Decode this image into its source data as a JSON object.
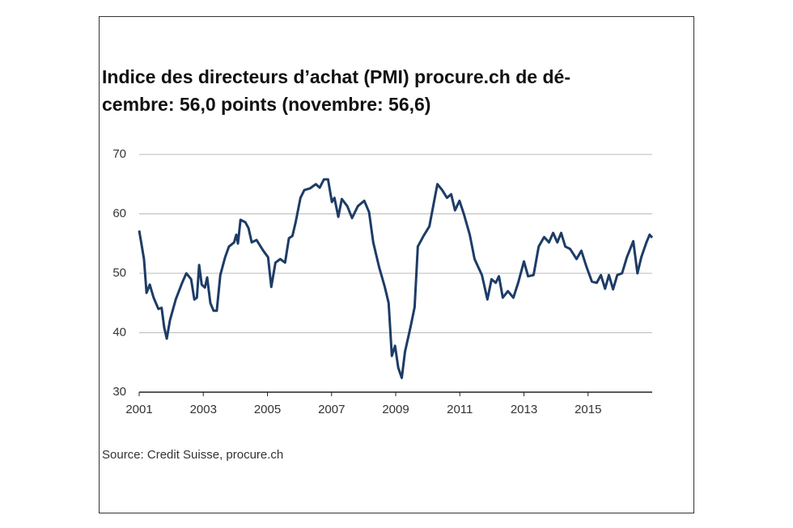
{
  "chart_data": {
    "type": "line",
    "title_lines": [
      "Indice des directeurs d’achat (PMI) procure.ch de dé-",
      "cembre: 56,0 points (novembre: 56,6)"
    ],
    "source": "Source: Credit Suisse, procure.ch",
    "xlim": [
      2001,
      2017
    ],
    "xticks": [
      2001,
      2003,
      2005,
      2007,
      2009,
      2011,
      2013,
      2015
    ],
    "ylim": [
      30,
      70
    ],
    "yticks": [
      30,
      40,
      50,
      60,
      70
    ],
    "grid": true,
    "series": [
      {
        "name": "PMI",
        "color": "#1d3c66",
        "x": [
          2001.0,
          2001.15,
          2001.23,
          2001.33,
          2001.45,
          2001.6,
          2001.7,
          2001.78,
          2001.86,
          2001.96,
          2002.14,
          2002.34,
          2002.47,
          2002.62,
          2002.72,
          2002.8,
          2002.87,
          2002.95,
          2003.05,
          2003.12,
          2003.22,
          2003.32,
          2003.42,
          2003.53,
          2003.68,
          2003.8,
          2003.96,
          2004.03,
          2004.08,
          2004.16,
          2004.31,
          2004.41,
          2004.51,
          2004.66,
          2004.87,
          2005.02,
          2005.12,
          2005.25,
          2005.4,
          2005.55,
          2005.67,
          2005.78,
          2005.88,
          2006.03,
          2006.15,
          2006.33,
          2006.51,
          2006.63,
          2006.76,
          2006.89,
          2007.01,
          2007.09,
          2007.21,
          2007.32,
          2007.49,
          2007.64,
          2007.82,
          2008.02,
          2008.17,
          2008.3,
          2008.48,
          2008.66,
          2008.78,
          2008.88,
          2008.98,
          2009.08,
          2009.19,
          2009.29,
          2009.46,
          2009.59,
          2009.69,
          2009.87,
          2010.05,
          2010.17,
          2010.3,
          2010.45,
          2010.6,
          2010.73,
          2010.85,
          2010.99,
          2011.13,
          2011.31,
          2011.46,
          2011.69,
          2011.86,
          2011.99,
          2012.12,
          2012.22,
          2012.34,
          2012.5,
          2012.67,
          2012.82,
          2013.0,
          2013.13,
          2013.3,
          2013.46,
          2013.63,
          2013.78,
          2013.91,
          2014.04,
          2014.16,
          2014.29,
          2014.44,
          2014.64,
          2014.79,
          2014.95,
          2015.12,
          2015.27,
          2015.4,
          2015.53,
          2015.65,
          2015.78,
          2015.91,
          2016.06,
          2016.21,
          2016.41,
          2016.54,
          2016.66,
          2016.82,
          2016.92,
          2017.0
        ],
        "values": [
          57.2,
          52.4,
          46.7,
          48.1,
          45.9,
          44,
          44.2,
          40.9,
          39,
          42.1,
          45.6,
          48.4,
          50,
          49,
          45.6,
          45.9,
          51.4,
          48.1,
          47.6,
          49.3,
          45,
          43.7,
          43.7,
          49.7,
          52.7,
          54.5,
          55.2,
          56.5,
          55,
          59,
          58.6,
          57.6,
          55.2,
          55.6,
          53.8,
          52.7,
          47.7,
          51.8,
          52.4,
          51.8,
          55.9,
          56.3,
          58.6,
          62.7,
          64,
          64.3,
          65,
          64.4,
          65.8,
          65.8,
          62,
          62.7,
          59.5,
          62.5,
          61.3,
          59.3,
          61.3,
          62.2,
          60.3,
          55.2,
          51.1,
          47.7,
          45,
          36.1,
          37.8,
          34.1,
          32.4,
          36.8,
          40.9,
          44.3,
          54.5,
          56.3,
          57.9,
          61.3,
          65,
          64,
          62.7,
          63.3,
          60.6,
          62.2,
          59.9,
          56.5,
          52.4,
          49.7,
          45.6,
          49,
          48.4,
          49.5,
          45.9,
          47,
          45.9,
          48.4,
          52,
          49.5,
          49.7,
          54.5,
          56.1,
          55.2,
          56.8,
          55.2,
          56.8,
          54.5,
          54.1,
          52.4,
          53.8,
          51.1,
          48.6,
          48.4,
          49.7,
          47.4,
          49.7,
          47.3,
          49.7,
          50,
          52.7,
          55.4,
          50,
          52.7,
          55.2,
          56.5,
          56
        ]
      }
    ]
  }
}
